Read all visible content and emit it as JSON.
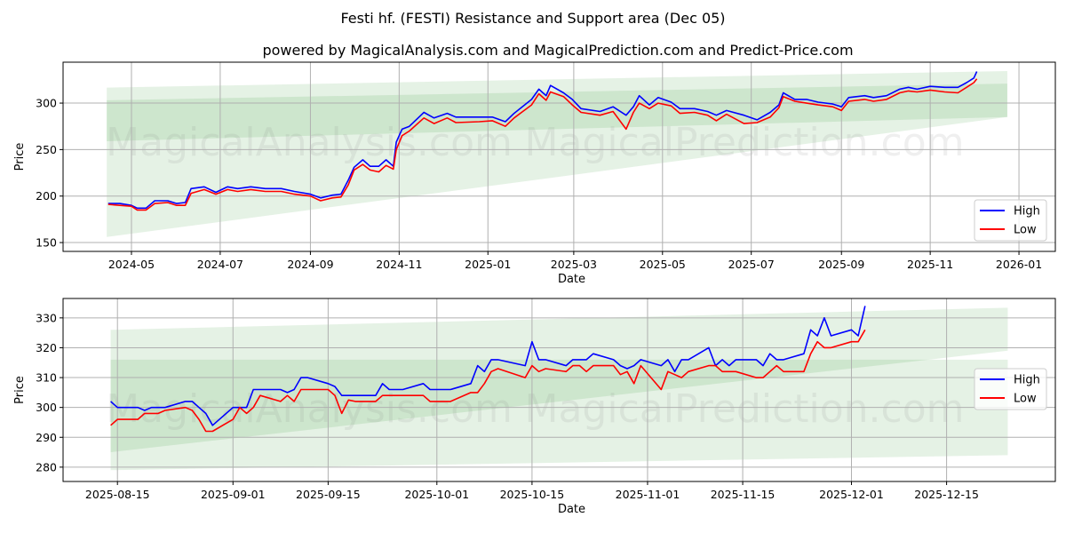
{
  "title": "Festi hf. (FESTI) Resistance and Support area (Dec 05)",
  "subtitle": "powered by MagicalAnalysis.com and MagicalPrediction.com and Predict-Price.com",
  "watermarks": [
    "MagicalAnalysis.com",
    "MagicalPrediction.com"
  ],
  "colors": {
    "high": "#0000ff",
    "low": "#ff0000",
    "band": "#008000",
    "grid": "#b0b0b0"
  },
  "chart_data": [
    {
      "type": "line",
      "xlabel": "Date",
      "ylabel": "Price",
      "xlim": [
        "2024-03-15",
        "2026-01-26"
      ],
      "ylim": [
        140.5,
        344
      ],
      "grid": true,
      "legend": {
        "position": "lower-right",
        "entries": [
          "High",
          "Low"
        ]
      },
      "yticks": [
        150,
        200,
        250,
        300
      ],
      "xticks": [
        {
          "date": "2024-05-01",
          "label": "2024-05"
        },
        {
          "date": "2024-07-01",
          "label": "2024-07"
        },
        {
          "date": "2024-09-01",
          "label": "2024-09"
        },
        {
          "date": "2024-11-01",
          "label": "2024-11"
        },
        {
          "date": "2025-01-01",
          "label": "2025-01"
        },
        {
          "date": "2025-03-01",
          "label": "2025-03"
        },
        {
          "date": "2025-05-01",
          "label": "2025-05"
        },
        {
          "date": "2025-07-01",
          "label": "2025-07"
        },
        {
          "date": "2025-09-01",
          "label": "2025-09"
        },
        {
          "date": "2025-11-01",
          "label": "2025-11"
        },
        {
          "date": "2026-01-01",
          "label": "2026-01"
        }
      ],
      "bands": [
        {
          "start": "2024-04-14",
          "end": "2025-12-24",
          "top": [
            316.6,
            334.5
          ],
          "bottom": [
            259,
            285
          ]
        },
        {
          "start": "2024-04-14",
          "end": "2025-12-24",
          "top": [
            303,
            321
          ],
          "bottom": [
            156,
            285
          ]
        }
      ],
      "x": [
        "2024-04-15",
        "2024-04-23",
        "2024-05-01",
        "2024-05-05",
        "2024-05-11",
        "2024-05-17",
        "2024-05-26",
        "2024-06-01",
        "2024-06-07",
        "2024-06-11",
        "2024-06-20",
        "2024-06-28",
        "2024-07-06",
        "2024-07-13",
        "2024-07-22",
        "2024-08-01",
        "2024-08-12",
        "2024-08-21",
        "2024-09-01",
        "2024-09-08",
        "2024-09-16",
        "2024-09-22",
        "2024-09-27",
        "2024-10-01",
        "2024-10-07",
        "2024-10-12",
        "2024-10-18",
        "2024-10-23",
        "2024-10-28",
        "2024-10-30",
        "2024-11-03",
        "2024-11-08",
        "2024-11-18",
        "2024-11-25",
        "2024-12-04",
        "2024-12-10",
        "2024-12-26",
        "2025-01-04",
        "2025-01-13",
        "2025-01-19",
        "2025-01-31",
        "2025-02-05",
        "2025-02-10",
        "2025-02-13",
        "2025-02-22",
        "2025-02-28",
        "2025-03-06",
        "2025-03-19",
        "2025-03-28",
        "2025-04-06",
        "2025-04-11",
        "2025-04-15",
        "2025-04-22",
        "2025-04-28",
        "2025-05-07",
        "2025-05-13",
        "2025-05-23",
        "2025-06-01",
        "2025-06-07",
        "2025-06-14",
        "2025-06-26",
        "2025-07-05",
        "2025-07-14",
        "2025-07-20",
        "2025-07-23",
        "2025-07-31",
        "2025-08-08",
        "2025-08-16",
        "2025-08-26",
        "2025-09-01",
        "2025-09-06",
        "2025-09-17",
        "2025-09-23",
        "2025-10-02",
        "2025-10-11",
        "2025-10-17",
        "2025-10-23",
        "2025-11-01",
        "2025-11-11",
        "2025-11-20",
        "2025-11-26",
        "2025-12-01",
        "2025-12-03"
      ],
      "series": [
        {
          "name": "High",
          "values": [
            192,
            192,
            190,
            187,
            187,
            195,
            195,
            192,
            193,
            208,
            210,
            204,
            210,
            208,
            210,
            208,
            208,
            205,
            202,
            198,
            201,
            202,
            217,
            231,
            239,
            232,
            232,
            239,
            232,
            258,
            272,
            275,
            290,
            284,
            289,
            285,
            285,
            285,
            280,
            289,
            304,
            315,
            308,
            319,
            311,
            304,
            294,
            291,
            296,
            287,
            296,
            308,
            298,
            306,
            301,
            294,
            294,
            291,
            287,
            292,
            287,
            282,
            290,
            298,
            311,
            304,
            304,
            301,
            299,
            296,
            306,
            308,
            306,
            308,
            315,
            317,
            315,
            318,
            317,
            317,
            322,
            327,
            334
          ]
        },
        {
          "name": "Low",
          "values": [
            191,
            190,
            189,
            185,
            185,
            192,
            193,
            190,
            190,
            203,
            207,
            202,
            207,
            205,
            207,
            205,
            205,
            202,
            200,
            195,
            198,
            199,
            212,
            228,
            234,
            228,
            226,
            233,
            229,
            250,
            265,
            270,
            284,
            278,
            284,
            279,
            280,
            281,
            275,
            284,
            298,
            310,
            303,
            312,
            307,
            298,
            290,
            287,
            291,
            272,
            290,
            300,
            294,
            300,
            297,
            289,
            290,
            287,
            281,
            288,
            278,
            279,
            285,
            295,
            307,
            302,
            300,
            298,
            296,
            292,
            302,
            304,
            302,
            304,
            311,
            313,
            312,
            314,
            312,
            311,
            317,
            322,
            326
          ]
        }
      ]
    },
    {
      "type": "line",
      "xlabel": "Date",
      "ylabel": "Price",
      "xlim": [
        "2025-08-07",
        "2025-12-31"
      ],
      "ylim": [
        275.2,
        336.5
      ],
      "grid": true,
      "legend": {
        "position": "center-right",
        "entries": [
          "High",
          "Low"
        ]
      },
      "yticks": [
        280,
        290,
        300,
        310,
        320,
        330
      ],
      "xticks": [
        {
          "date": "2025-08-15",
          "label": "2025-08-15"
        },
        {
          "date": "2025-09-01",
          "label": "2025-09-01"
        },
        {
          "date": "2025-09-15",
          "label": "2025-09-15"
        },
        {
          "date": "2025-10-01",
          "label": "2025-10-01"
        },
        {
          "date": "2025-10-15",
          "label": "2025-10-15"
        },
        {
          "date": "2025-11-01",
          "label": "2025-11-01"
        },
        {
          "date": "2025-11-15",
          "label": "2025-11-15"
        },
        {
          "date": "2025-12-01",
          "label": "2025-12-01"
        },
        {
          "date": "2025-12-15",
          "label": "2025-12-15"
        }
      ],
      "bands": [
        {
          "start": "2025-08-14",
          "end": "2025-12-24",
          "top": [
            316,
            316
          ],
          "bottom": [
            279,
            284
          ]
        },
        {
          "start": "2025-08-14",
          "end": "2025-12-24",
          "top": [
            326,
            333.4
          ],
          "bottom": [
            285,
            319
          ]
        }
      ],
      "x": [
        "2025-08-14",
        "2025-08-15",
        "2025-08-18",
        "2025-08-19",
        "2025-08-20",
        "2025-08-21",
        "2025-08-22",
        "2025-08-25",
        "2025-08-26",
        "2025-08-27",
        "2025-08-28",
        "2025-08-29",
        "2025-09-01",
        "2025-09-02",
        "2025-09-03",
        "2025-09-04",
        "2025-09-05",
        "2025-09-08",
        "2025-09-09",
        "2025-09-10",
        "2025-09-11",
        "2025-09-12",
        "2025-09-15",
        "2025-09-16",
        "2025-09-17",
        "2025-09-18",
        "2025-09-19",
        "2025-09-22",
        "2025-09-23",
        "2025-09-24",
        "2025-09-26",
        "2025-09-29",
        "2025-09-30",
        "2025-10-03",
        "2025-10-06",
        "2025-10-07",
        "2025-10-08",
        "2025-10-09",
        "2025-10-10",
        "2025-10-14",
        "2025-10-15",
        "2025-10-16",
        "2025-10-17",
        "2025-10-20",
        "2025-10-21",
        "2025-10-22",
        "2025-10-23",
        "2025-10-24",
        "2025-10-27",
        "2025-10-28",
        "2025-10-29",
        "2025-10-30",
        "2025-10-31",
        "2025-11-03",
        "2025-11-04",
        "2025-11-05",
        "2025-11-06",
        "2025-11-07",
        "2025-11-10",
        "2025-11-11",
        "2025-11-12",
        "2025-11-13",
        "2025-11-14",
        "2025-11-17",
        "2025-11-18",
        "2025-11-19",
        "2025-11-20",
        "2025-11-21",
        "2025-11-24",
        "2025-11-25",
        "2025-11-26",
        "2025-11-27",
        "2025-11-28",
        "2025-12-01",
        "2025-12-02",
        "2025-12-03"
      ],
      "series": [
        {
          "name": "High",
          "values": [
            302,
            300,
            300,
            299,
            300,
            300,
            300,
            302,
            302,
            300,
            298,
            294,
            300,
            300,
            300,
            306,
            306,
            306,
            305,
            306,
            310,
            310,
            308,
            307,
            304,
            304,
            304,
            304,
            308,
            306,
            306,
            308,
            306,
            306,
            308,
            314,
            312,
            316,
            316,
            314,
            322,
            316,
            316,
            314,
            316,
            316,
            316,
            318,
            316,
            314,
            313,
            314,
            316,
            314,
            316,
            312,
            316,
            316,
            320,
            314,
            316,
            314,
            316,
            316,
            314,
            318,
            316,
            316,
            318,
            326,
            324,
            330,
            324,
            326,
            324,
            334
          ]
        },
        {
          "name": "Low",
          "values": [
            294,
            296,
            296,
            298,
            298,
            298,
            299,
            300,
            299,
            296,
            292,
            292,
            296,
            300,
            298,
            300,
            304,
            302,
            304,
            302,
            306,
            306,
            306,
            304,
            298,
            302.5,
            302,
            302,
            304,
            304,
            304,
            304,
            302,
            302,
            305,
            305,
            308,
            312,
            313,
            310,
            314,
            312,
            313,
            312,
            314,
            314,
            312,
            314,
            314,
            311,
            312,
            308,
            314,
            306,
            312,
            311,
            310,
            312,
            314,
            314,
            312,
            312,
            312,
            310,
            310,
            312,
            314,
            312,
            312,
            318,
            322,
            320,
            320,
            322,
            322,
            326
          ]
        }
      ]
    }
  ]
}
